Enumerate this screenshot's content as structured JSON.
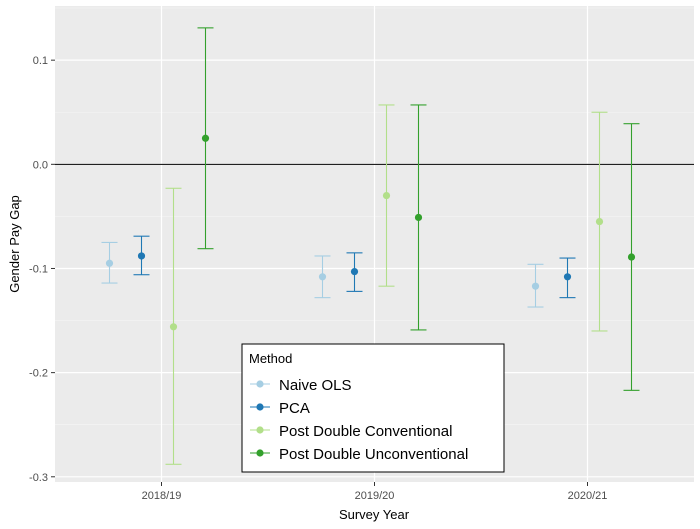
{
  "chart_data": {
    "type": "errorbar",
    "title": "",
    "xlabel": "Survey Year",
    "ylabel": "Gender Pay Gap",
    "categories": [
      "2018/19",
      "2019/20",
      "2020/21"
    ],
    "ylim": [
      -0.305,
      0.152
    ],
    "yticks": [
      -0.3,
      -0.2,
      -0.1,
      0.0,
      0.1
    ],
    "ytick_labels": [
      "-0.3",
      "-0.2",
      "-0.1",
      "0.0",
      "0.1"
    ],
    "hline": 0.0,
    "grid": true,
    "legend": {
      "title": "Method",
      "position": "bottom-center"
    },
    "series": [
      {
        "name": "Naive OLS",
        "color": "#a6cee3",
        "estimate": [
          -0.095,
          -0.108,
          -0.117
        ],
        "lower": [
          -0.114,
          -0.128,
          -0.137
        ],
        "upper": [
          -0.075,
          -0.088,
          -0.096
        ]
      },
      {
        "name": "PCA",
        "color": "#1f78b4",
        "estimate": [
          -0.088,
          -0.103,
          -0.108
        ],
        "lower": [
          -0.106,
          -0.122,
          -0.128
        ],
        "upper": [
          -0.069,
          -0.085,
          -0.09
        ]
      },
      {
        "name": "Post Double Conventional",
        "color": "#b2df8a",
        "estimate": [
          -0.156,
          -0.03,
          -0.055
        ],
        "lower": [
          -0.288,
          -0.117,
          -0.16
        ],
        "upper": [
          -0.023,
          0.057,
          0.05
        ]
      },
      {
        "name": "Post Double Unconventional",
        "color": "#33a02c",
        "estimate": [
          0.025,
          -0.051,
          -0.089
        ],
        "lower": [
          -0.081,
          -0.159,
          -0.217
        ],
        "upper": [
          0.131,
          0.057,
          0.039
        ]
      }
    ]
  }
}
